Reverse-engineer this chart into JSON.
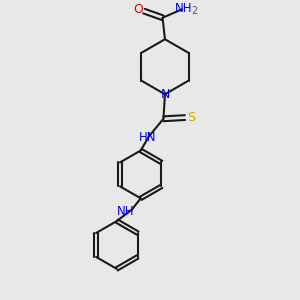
{
  "bg_color": "#e8e8e8",
  "bond_color": "#1a1a1a",
  "N_color": "#0000ee",
  "O_color": "#dd0000",
  "S_color": "#ccaa00",
  "lw": 1.5,
  "figsize": [
    3.0,
    3.0
  ],
  "dpi": 100,
  "xlim": [
    0,
    10
  ],
  "ylim": [
    0,
    10
  ]
}
